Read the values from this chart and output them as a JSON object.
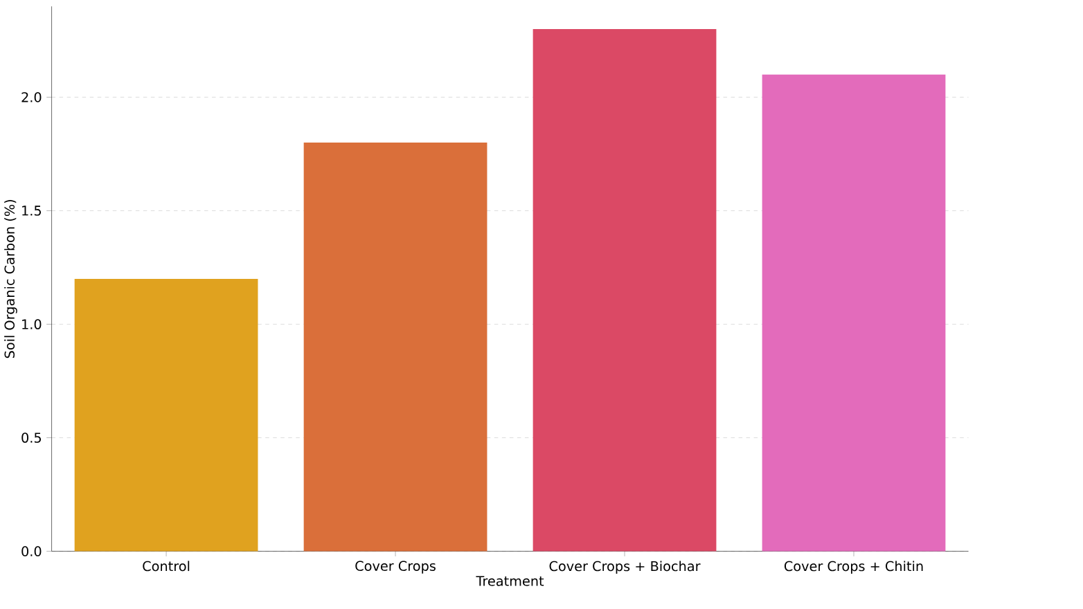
{
  "chart_data": {
    "type": "bar",
    "xlabel": "Treatment",
    "ylabel": "Soil Organic Carbon (%)",
    "categories": [
      "Control",
      "Cover Crops",
      "Cover Crops + Biochar",
      "Cover Crops + Chitin"
    ],
    "values": [
      1.2,
      1.8,
      2.3,
      2.1
    ],
    "colors": [
      "#e0a21f",
      "#da6f3a",
      "#db4965",
      "#e36bbb"
    ],
    "ylim": [
      0,
      2.4
    ],
    "yticks": [
      {
        "value": 0,
        "label": "0.0"
      },
      0.5,
      {
        "value": 1,
        "label": "1.0"
      },
      1.5,
      {
        "value": 2,
        "label": "2.0"
      }
    ],
    "grid": "y"
  }
}
